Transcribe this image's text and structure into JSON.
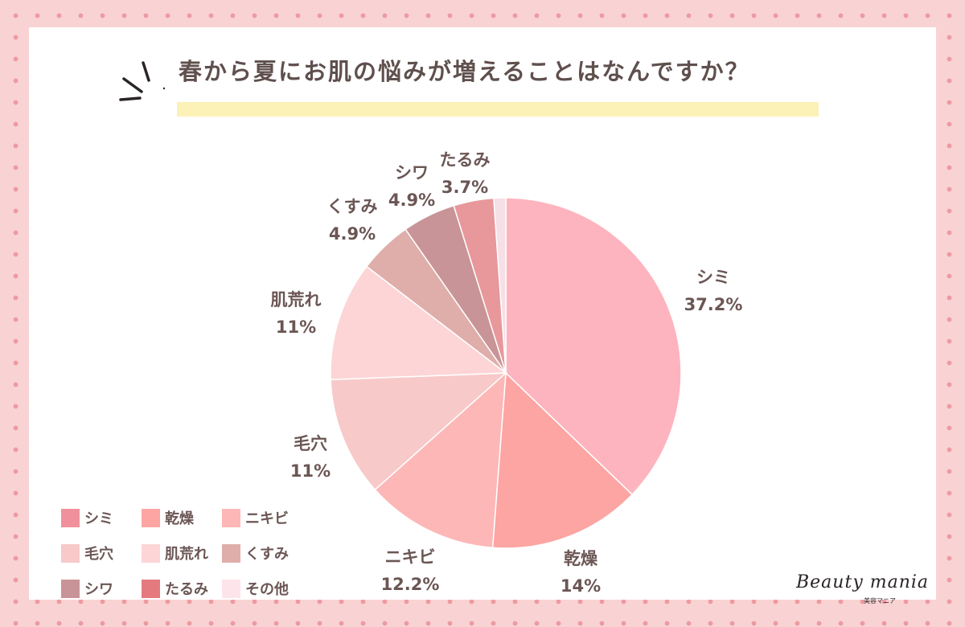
{
  "title": "春から夏にお肌の悩みが増えることはなんですか？",
  "brand": {
    "name": "Beauty mania",
    "sub": "美容マニア"
  },
  "chart_data": {
    "type": "pie",
    "title": "春から夏にお肌の悩みが増えることはなんですか？",
    "slices": [
      {
        "label": "シミ",
        "value": 37.2,
        "value_label": "37.2%",
        "color": "#fdb4be",
        "legend_color": "#f0909c"
      },
      {
        "label": "乾燥",
        "value": 14,
        "value_label": "14%",
        "color": "#fca5a3",
        "legend_color": "#fca5a3"
      },
      {
        "label": "ニキビ",
        "value": 12.2,
        "value_label": "12.2%",
        "color": "#fdb7b7",
        "legend_color": "#fdb7b7"
      },
      {
        "label": "毛穴",
        "value": 11,
        "value_label": "11%",
        "color": "#f8c9c9",
        "legend_color": "#f8c9c9"
      },
      {
        "label": "肌荒れ",
        "value": 11,
        "value_label": "11%",
        "color": "#fdd5d6",
        "legend_color": "#fdd5d6"
      },
      {
        "label": "くすみ",
        "value": 4.9,
        "value_label": "4.9%",
        "color": "#dfaeaa",
        "legend_color": "#dfaeaa"
      },
      {
        "label": "シワ",
        "value": 4.9,
        "value_label": "4.9%",
        "color": "#c99497",
        "legend_color": "#c99497"
      },
      {
        "label": "たるみ",
        "value": 3.7,
        "value_label": "3.7%",
        "color": "#e8979b",
        "legend_color": "#e57a7e"
      },
      {
        "label": "その他",
        "value": 1.1,
        "value_label": "",
        "color": "#f6dfe6",
        "legend_color": "#fde4ea"
      }
    ],
    "legend": [
      [
        "シミ",
        "乾燥",
        "ニキビ"
      ],
      [
        "毛穴",
        "肌荒れ",
        "くすみ"
      ],
      [
        "シワ",
        "たるみ",
        "その他"
      ]
    ],
    "legend_position": "bottom-left"
  }
}
